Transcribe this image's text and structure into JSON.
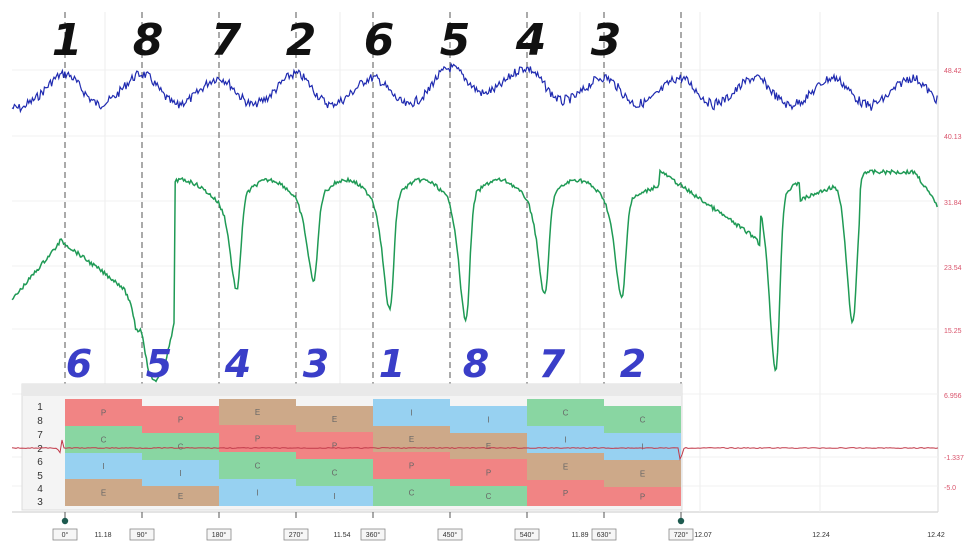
{
  "chart_data": {
    "type": "line",
    "top_numbers": [
      "1",
      "8",
      "7",
      "2",
      "6",
      "5",
      "4",
      "3"
    ],
    "mid_numbers": [
      "6",
      "5",
      "4",
      "3",
      "1",
      "8",
      "7",
      "2"
    ],
    "row_labels": [
      "1",
      "8",
      "7",
      "2",
      "6",
      "5",
      "4",
      "3"
    ],
    "x_tick_labels": [
      "0°",
      "11.18",
      "90°",
      "180°",
      "270°",
      "11.54",
      "360°",
      "450°",
      "540°",
      "11.89",
      "630°",
      "720°",
      "12.07",
      "12.24",
      "12.42"
    ],
    "right_axis_labels": [
      "48.42",
      "40.13",
      "31.84",
      "23.54",
      "15.25",
      "6.956",
      "-1.337",
      "-5.0"
    ],
    "table_column_letters": [
      [
        "P",
        "C",
        "I",
        "E"
      ],
      [
        "P",
        "C",
        "I",
        "E"
      ],
      [
        "E",
        "P",
        "C",
        "I"
      ],
      [
        "E",
        "P",
        "C",
        "I"
      ],
      [
        "I",
        "E",
        "P",
        "C"
      ],
      [
        "I",
        "E",
        "P",
        "C"
      ],
      [
        "C",
        "I",
        "E",
        "P"
      ],
      [
        "C",
        "I",
        "E",
        "P"
      ]
    ],
    "grid": true,
    "colors": {
      "blue_trace": "#1f2ab0",
      "green_trace": "#1f9a55",
      "red_trace": "#c23a4a",
      "big_numbers_top": "#111111",
      "big_numbers_mid": "#3a3ec8",
      "P": "#f07a7a",
      "C": "#7fd39a",
      "I": "#8ecdf0",
      "E": "#c9a27f"
    }
  }
}
